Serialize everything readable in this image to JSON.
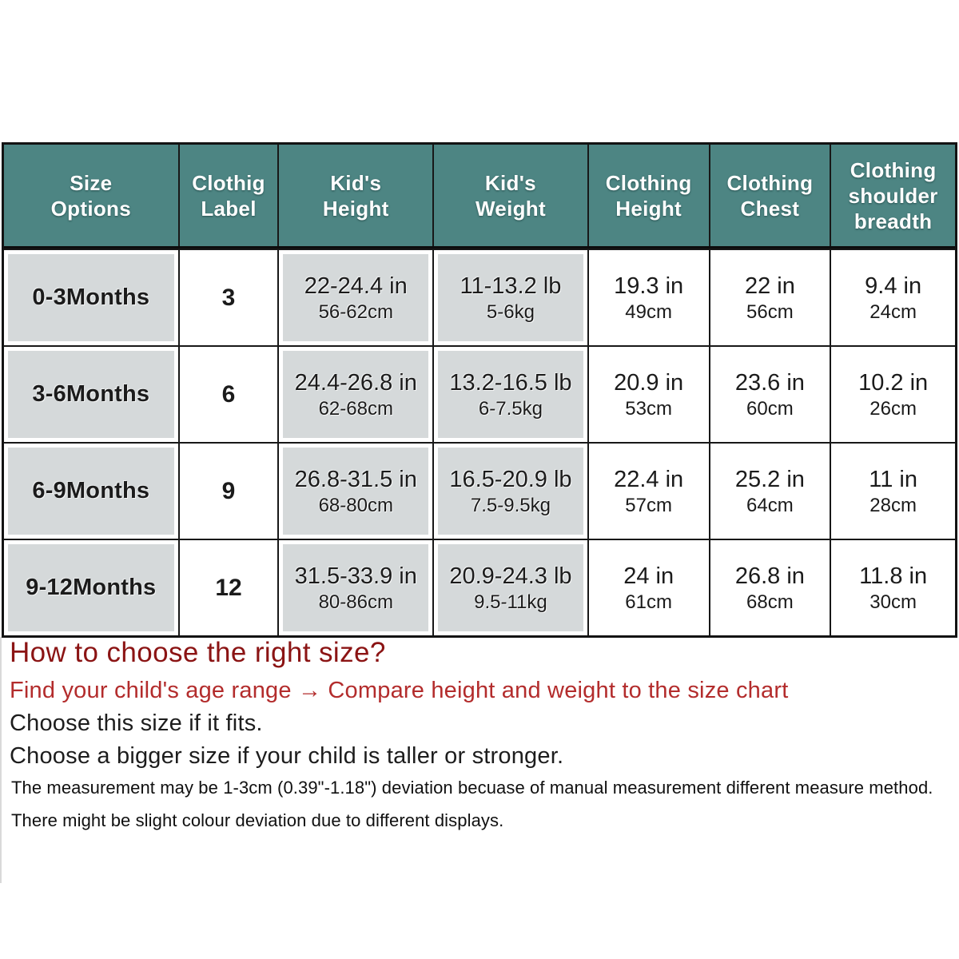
{
  "colors": {
    "header_bg": "#4d8583",
    "header_text": "#ffffff",
    "cell_gray": "#d5d9da",
    "border": "#131313",
    "title_red": "#8b1414",
    "subtitle_red": "#b32c2c",
    "text_black": "#1d1d1d"
  },
  "table": {
    "headers": [
      "Size\nOptions",
      "Clothig\nLabel",
      "Kid's\nHeight",
      "Kid's\nWeight",
      "Clothing\nHeight",
      "Clothing\nChest",
      "Clothing\nshoulder\nbreadth"
    ],
    "rows": [
      {
        "size": "0-3Months",
        "label": "3",
        "kid_height_in": "22-24.4 in",
        "kid_height_cm": "56-62cm",
        "kid_weight_lb": "11-13.2 lb",
        "kid_weight_kg": "5-6kg",
        "clothing_height_in": "19.3 in",
        "clothing_height_cm": "49cm",
        "clothing_chest_in": "22 in",
        "clothing_chest_cm": "56cm",
        "shoulder_in": "9.4 in",
        "shoulder_cm": "24cm"
      },
      {
        "size": "3-6Months",
        "label": "6",
        "kid_height_in": "24.4-26.8 in",
        "kid_height_cm": "62-68cm",
        "kid_weight_lb": "13.2-16.5 lb",
        "kid_weight_kg": "6-7.5kg",
        "clothing_height_in": "20.9 in",
        "clothing_height_cm": "53cm",
        "clothing_chest_in": "23.6 in",
        "clothing_chest_cm": "60cm",
        "shoulder_in": "10.2 in",
        "shoulder_cm": "26cm"
      },
      {
        "size": "6-9Months",
        "label": "9",
        "kid_height_in": "26.8-31.5 in",
        "kid_height_cm": "68-80cm",
        "kid_weight_lb": "16.5-20.9 lb",
        "kid_weight_kg": "7.5-9.5kg",
        "clothing_height_in": "22.4 in",
        "clothing_height_cm": "57cm",
        "clothing_chest_in": "25.2 in",
        "clothing_chest_cm": "64cm",
        "shoulder_in": "11 in",
        "shoulder_cm": "28cm"
      },
      {
        "size": "9-12Months",
        "label": "12",
        "kid_height_in": "31.5-33.9 in",
        "kid_height_cm": "80-86cm",
        "kid_weight_lb": "20.9-24.3 lb",
        "kid_weight_kg": "9.5-11kg",
        "clothing_height_in": "24 in",
        "clothing_height_cm": "61cm",
        "clothing_chest_in": "26.8 in",
        "clothing_chest_cm": "68cm",
        "shoulder_in": "11.8 in",
        "shoulder_cm": "30cm"
      }
    ]
  },
  "guide": {
    "title": "How to choose the right size?",
    "line1": "Find your child's age range → Compare height and weight to the size chart",
    "line2": "Choose this size if it fits.",
    "line3": "Choose a bigger size if your child is taller or stronger."
  },
  "notes": {
    "line1": "The measurement may be 1-3cm (0.39\"-1.18\") deviation becuase of manual measurement different measure method.",
    "line2": "There might be slight colour deviation due to different displays."
  }
}
